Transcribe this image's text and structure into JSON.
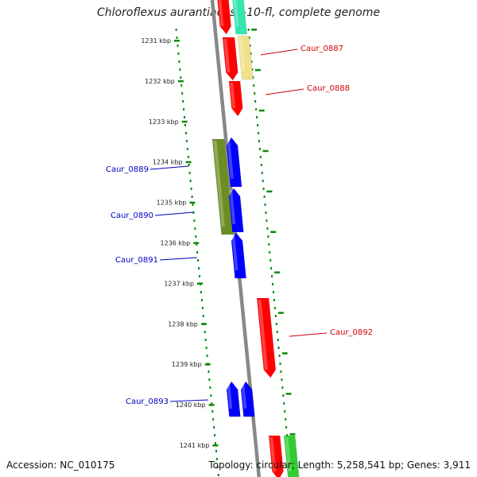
{
  "title": "Chloroflexus aurantiacus J-10-fl, complete genome",
  "accession": "Accession: NC_010175",
  "topology": "Topology: circular; Length: 5,258,541 bp; Genes: 3,911",
  "colors": {
    "forward": "#ff0000",
    "reverse": "#0000ff",
    "olive": "#6b8e23",
    "pale": "#f0e08c",
    "aqua": "#33e6b0",
    "green": "#33cc33",
    "dots": "#0a8a0a",
    "backbone": "#888888"
  },
  "ticks": [
    {
      "label": "1231 kbp"
    },
    {
      "label": "1232 kbp"
    },
    {
      "label": "1233 kbp"
    },
    {
      "label": "1234 kbp"
    },
    {
      "label": "1235 kbp"
    },
    {
      "label": "1236 kbp"
    },
    {
      "label": "1237 kbp"
    },
    {
      "label": "1238 kbp"
    },
    {
      "label": "1239 kbp"
    },
    {
      "label": "1240 kbp"
    },
    {
      "label": "1241 kbp"
    }
  ],
  "gene_labels": [
    {
      "text": "Caur_0887",
      "strand": "forward"
    },
    {
      "text": "Caur_0888",
      "strand": "forward"
    },
    {
      "text": "Caur_0889",
      "strand": "reverse"
    },
    {
      "text": "Caur_0890",
      "strand": "reverse"
    },
    {
      "text": "Caur_0891",
      "strand": "reverse"
    },
    {
      "text": "Caur_0892",
      "strand": "forward"
    },
    {
      "text": "Caur_0893",
      "strand": "reverse"
    }
  ]
}
